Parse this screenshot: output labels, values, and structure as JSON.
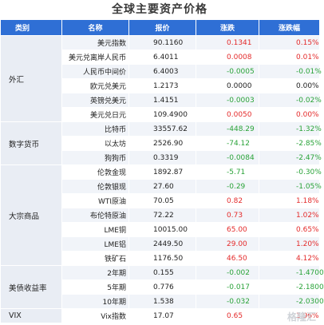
{
  "title": "全球主要资产价格",
  "header": {
    "category": "类别",
    "name": "名称",
    "price": "报价",
    "change": "涨跌",
    "pct": "涨跌幅"
  },
  "groups": [
    {
      "category": "外汇",
      "rows": [
        {
          "name": "美元指数",
          "price": "90.1160",
          "change": "0.1341",
          "pct": "0.15%",
          "dir": "up"
        },
        {
          "name": "美元兑离岸人民币",
          "price": "6.4011",
          "change": "0.0008",
          "pct": "0.01%",
          "dir": "up"
        },
        {
          "name": "人民币中间价",
          "price": "6.4003",
          "change": "-0.0005",
          "pct": "-0.01%",
          "dir": "down"
        },
        {
          "name": "欧元兑美元",
          "price": "1.2173",
          "change": "0.0000",
          "pct": "0.00%",
          "dir": "flat"
        },
        {
          "name": "英镑兑美元",
          "price": "1.4151",
          "change": "-0.0003",
          "pct": "-0.02%",
          "dir": "down"
        },
        {
          "name": "美元兑日元",
          "price": "109.4900",
          "change": "0.0050",
          "pct": "0.00%",
          "dir": "up"
        }
      ]
    },
    {
      "category": "数字货币",
      "rows": [
        {
          "name": "比特币",
          "price": "33557.62",
          "change": "-448.29",
          "pct": "-1.32%",
          "dir": "down"
        },
        {
          "name": "以太坊",
          "price": "2526.90",
          "change": "-74.12",
          "pct": "-2.85%",
          "dir": "down"
        },
        {
          "name": "狗狗币",
          "price": "0.3319",
          "change": "-0.0084",
          "pct": "-2.47%",
          "dir": "down"
        }
      ]
    },
    {
      "category": "大宗商品",
      "rows": [
        {
          "name": "伦敦金现",
          "price": "1892.87",
          "change": "-5.71",
          "pct": "-0.30%",
          "dir": "down"
        },
        {
          "name": "伦敦银现",
          "price": "27.60",
          "change": "-0.29",
          "pct": "-1.05%",
          "dir": "down"
        },
        {
          "name": "WTI原油",
          "price": "70.05",
          "change": "0.82",
          "pct": "1.18%",
          "dir": "up"
        },
        {
          "name": "布伦特原油",
          "price": "72.22",
          "change": "0.73",
          "pct": "1.02%",
          "dir": "up"
        },
        {
          "name": "LME铜",
          "price": "10015.00",
          "change": "65.00",
          "pct": "0.65%",
          "dir": "up"
        },
        {
          "name": "LME铝",
          "price": "2449.50",
          "change": "29.00",
          "pct": "1.20%",
          "dir": "up"
        },
        {
          "name": "铁矿石",
          "price": "1176.50",
          "change": "46.50",
          "pct": "4.12%",
          "dir": "up"
        }
      ]
    },
    {
      "category": "美债收益率",
      "rows": [
        {
          "name": "2年期",
          "price": "0.155",
          "change": "-0.002",
          "pct": "-1.4700",
          "dir": "down"
        },
        {
          "name": "5年期",
          "price": "0.776",
          "change": "-0.017",
          "pct": "-2.1800",
          "dir": "down"
        },
        {
          "name": "10年期",
          "price": "1.538",
          "change": "-0.032",
          "pct": "-2.0300",
          "dir": "down"
        }
      ]
    },
    {
      "category": "VIX",
      "rows": [
        {
          "name": "Vix指数",
          "price": "17.07",
          "change": "0.65",
          "pct": "3.96%",
          "dir": "up"
        }
      ]
    }
  ],
  "colors": {
    "header_bg": "#2f6fd5",
    "up": "#e42b2b",
    "down": "#2aa339",
    "category_bg": "#e9edf4",
    "stripe_bg": "#f1f4f9"
  },
  "watermark": "格隆汇"
}
